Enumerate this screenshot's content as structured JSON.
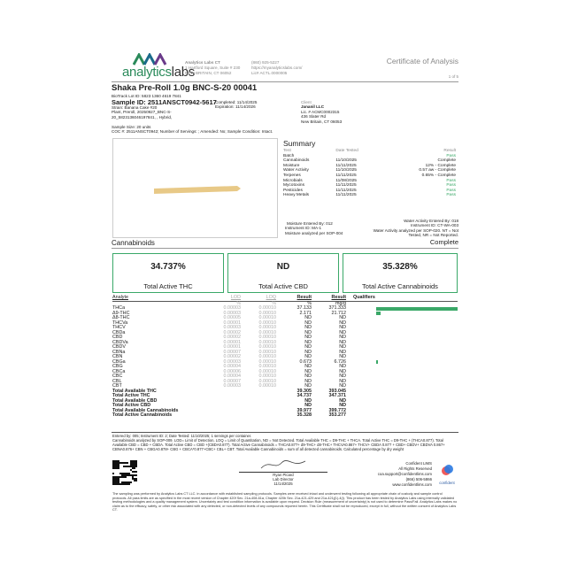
{
  "header": {
    "logo_text_1": "analytics",
    "logo_text_2": "labs",
    "lab_name": "Analytics Labs CT",
    "address1": "1 Hartford Square, Suite # 230",
    "address2": "NEW BRITAIN, CT 06052",
    "phone": "(860) 925-5227",
    "website": "https://myanalyticslabs.com/",
    "license": "Lic# ACTL.0000005",
    "doc_title": "Certificate of Analysis",
    "page": "1 of 5"
  },
  "sample": {
    "title": "Shaka Pre-Roll 1.0g BNC-S-20 00041",
    "biotrack": "BioTrack Lot ID: 5823 1360 4619 7841",
    "sample_id": "Sample ID: 2511ANSCT0942-5617",
    "completed": "Completed: 11/14/2025",
    "expiration": "Expiration: 11/14/2026",
    "strain": "Strain: Banana Cake #20",
    "plant": "Plant, Preroll, 20250927_BNC-S-",
    "plant2": "20_5823136046197841, , Hybrid,",
    "size": "Sample Size: 20 units",
    "coc": "COC #: 2511ANSCT0942; Number of Servings: ; Amended: No; Sample Condition: Intact."
  },
  "client": {
    "label": "Client",
    "name": "Jananil LLC",
    "lic": "Lic. # ACMC0002315",
    "addr1": "436 Slater Rd",
    "addr2": "New Britain, CT 06053"
  },
  "summary": {
    "title": "Summary",
    "headers": [
      "Test",
      "Date Tested",
      "Result"
    ],
    "rows": [
      [
        "Batch",
        "",
        "Pass"
      ],
      [
        "Cannabinoids",
        "11/10/2025",
        "Complete"
      ],
      [
        "Moisture",
        "11/11/2025",
        "12% - Complete"
      ],
      [
        "Water Activity",
        "11/10/2025",
        "0.57 aw - Complete"
      ],
      [
        "Terpenes",
        "11/11/2025",
        "0.65% - Complete"
      ],
      [
        "Microbials",
        "11/08/2025",
        "Pass"
      ],
      [
        "Mycotoxins",
        "11/11/2025",
        "Pass"
      ],
      [
        "Pesticides",
        "11/11/2025",
        "Pass"
      ],
      [
        "Heavy Metals",
        "11/11/2025",
        "Pass"
      ]
    ],
    "moisture_notes": [
      "Moisture Entered By: 012",
      "Instrument ID: MA-1",
      "Moisture analyzed per SOP-004"
    ],
    "water_notes": [
      "Water Activity Entered By: 018",
      "Instrument ID: CT-WA-003",
      "Water Activity analyzed per SOP-020. NT = Not",
      "Tested, NR = Not Reported."
    ]
  },
  "cannabinoids": {
    "title": "Cannabinoids",
    "status": "Complete",
    "totals": [
      {
        "value": "34.737%",
        "label": "Total Active THC"
      },
      {
        "value": "ND",
        "label": "Total Active CBD"
      },
      {
        "value": "35.328%",
        "label": "Total Active Cannabinoids"
      }
    ],
    "headers": [
      "Analyte",
      "LOD",
      "LOQ",
      "Result",
      "Result",
      "Qualifiers"
    ],
    "units": [
      "",
      "%",
      "%",
      "%",
      "mg/g",
      ""
    ],
    "rows": [
      [
        "THCa",
        "0.00003",
        "0.00010",
        "37.133",
        "371.333"
      ],
      [
        "Δ9-THC",
        "0.00003",
        "0.00010",
        "2.171",
        "21.712"
      ],
      [
        "Δ8-THC",
        "0.00005",
        "0.00010",
        "ND",
        "ND"
      ],
      [
        "THCVa",
        "0.00001",
        "0.00010",
        "ND",
        "ND"
      ],
      [
        "THCV",
        "0.00003",
        "0.00010",
        "ND",
        "ND"
      ],
      [
        "CBDa",
        "0.00002",
        "0.00010",
        "ND",
        "ND"
      ],
      [
        "CBD",
        "0.00002",
        "0.00010",
        "ND",
        "ND"
      ],
      [
        "CBDVa",
        "0.00001",
        "0.00010",
        "ND",
        "ND"
      ],
      [
        "CBDV",
        "0.00001",
        "0.00010",
        "ND",
        "ND"
      ],
      [
        "CBNa",
        "0.00007",
        "0.00010",
        "ND",
        "ND"
      ],
      [
        "CBN",
        "0.00002",
        "0.00010",
        "ND",
        "ND"
      ],
      [
        "CBGa",
        "0.00003",
        "0.00010",
        "0.673",
        "6.726"
      ],
      [
        "CBG",
        "0.00004",
        "0.00010",
        "ND",
        "ND"
      ],
      [
        "CBCa",
        "0.00006",
        "0.00010",
        "ND",
        "ND"
      ],
      [
        "CBC",
        "0.00004",
        "0.00010",
        "ND",
        "ND"
      ],
      [
        "CBL",
        "0.00007",
        "0.00010",
        "ND",
        "ND"
      ],
      [
        "CBT",
        "0.00003",
        "0.00010",
        "ND",
        "ND"
      ]
    ],
    "total_rows": [
      [
        "Total Available THC",
        "39.305",
        "393.045"
      ],
      [
        "Total Active THC",
        "34.737",
        "347.371"
      ],
      [
        "Total Available CBD",
        "ND",
        "ND"
      ],
      [
        "Total Active CBD",
        "ND",
        "ND"
      ],
      [
        "Total Available Cannabinoids",
        "39.977",
        "399.772"
      ],
      [
        "Total Active Cannabinoids",
        "35.328",
        "353.277"
      ]
    ],
    "bar_color": "#3aa868"
  },
  "footer": {
    "entered": "Entered by: 005; Instrument ID: 2; Date Tested: 11/10/2025; 1 servings per container.",
    "notes": "Cannabinoids analyzed by SOP-009. LOD= Limit of Detection, LOQ = Limit of Quantitation, ND = Not Detected. Total Available THC = D9-THC + THCA. Total Active THC = D9-THC + (THCA0.877). Total Available CBD = CBD + CBDA. Total Active CBD = CBD +(CBDA0.877). Total Active Cannabinoids = THCA0.877+ d9-THC+ d8-THC+ THCVA0.867+ THCV+ CBDA 0.877 + CBD+ CBDV+ CBDVA 0.867+ CBNA0.876+ CBN + CBGA0.878+ CBG + CBCA*0.877+CBC+ CBL+ CBT. Total Available Cannabinoids = sum of all detected cannabinoids. Calculated percentage by dry weight",
    "signer": "Ryan Picard",
    "signer_title": "Lab Director",
    "sign_date": "11/14/2025",
    "lims": [
      "Confident LIMS",
      "All Rights Reserved",
      "coa.support@confidentlims.com",
      "(866) 506-5866",
      "www.confidentlims.com"
    ],
    "lims_logo": "confident",
    "disclaimer": "The sampling was performed by Analytics Labs CT LLC. in accordance with established sampling protocols. Samples were received intact and underwent testing following all appropriate chain of custody and sample control protocols. All pass limits are as specified in the most recent version of Chapter 420f Sec. 21a-408-61a, Chapter 420b Sec. 21a-421-429 and 21a-421j(1)-4(i). This product has been tested by Analytics Labs using internally validated testing methodologies and a quality management system. Uncertainty and test condition information is available upon request. Decision Rule (measurement of uncertainty) is not used to determine Pass/Fail. Analytics Labs makes no claim as to the efficacy, safety, or other risk associated with any detected, or non-detected levels of any compounds reported herein. This Certificate shall not be reproduced, except in full, without the written consent of Analytics Labs CT."
  }
}
